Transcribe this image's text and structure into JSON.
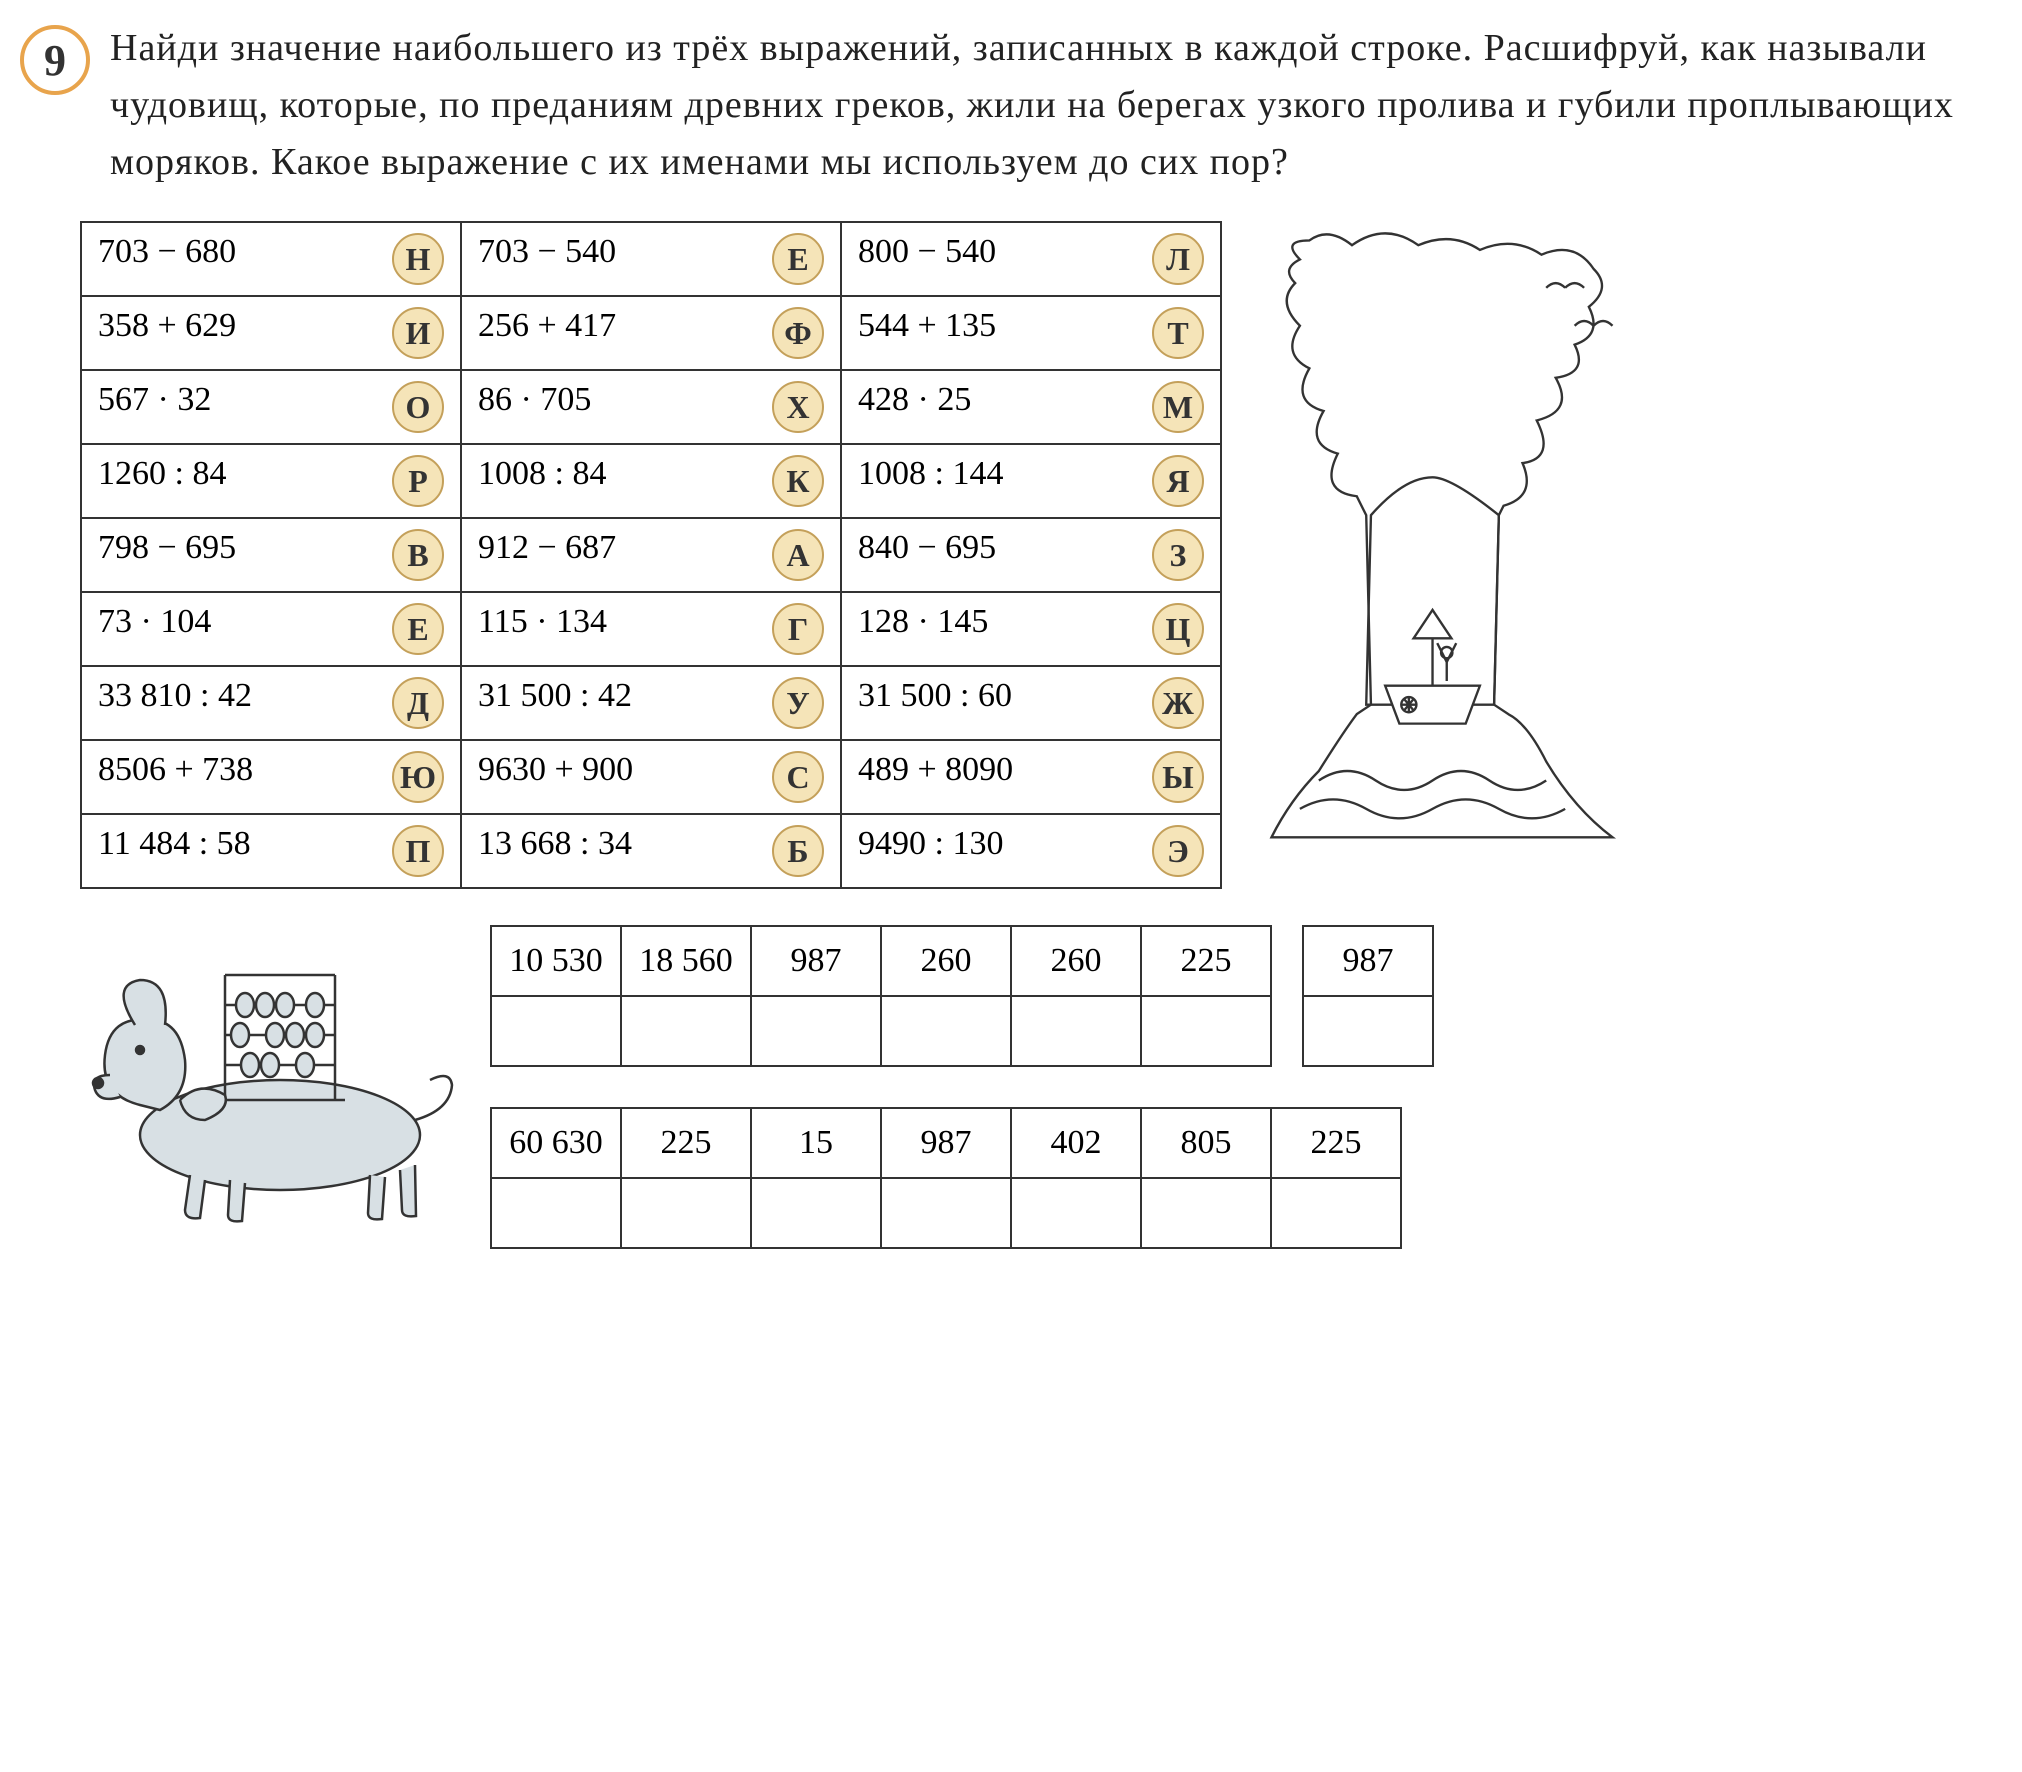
{
  "taskNumber": "9",
  "taskText": "Найди значение наибольшего из трёх выражений, записанных в каждой строке. Расшифруй, как называли чудовищ, которые, по преданиям древних греков, жили на берегах узкого пролива и губили проплывающих моряков. Какое выражение с их именами мы используем до сих пор?",
  "expressionRows": [
    [
      {
        "expr": "703 − 680",
        "letter": "Н"
      },
      {
        "expr": "703 − 540",
        "letter": "Е"
      },
      {
        "expr": "800 − 540",
        "letter": "Л"
      }
    ],
    [
      {
        "expr": "358 + 629",
        "letter": "И"
      },
      {
        "expr": "256 + 417",
        "letter": "Ф"
      },
      {
        "expr": "544 + 135",
        "letter": "Т"
      }
    ],
    [
      {
        "expr": "567 · 32",
        "letter": "О"
      },
      {
        "expr": "86 · 705",
        "letter": "Х"
      },
      {
        "expr": "428 · 25",
        "letter": "М"
      }
    ],
    [
      {
        "expr": "1260 : 84",
        "letter": "Р"
      },
      {
        "expr": "1008 : 84",
        "letter": "К"
      },
      {
        "expr": "1008 : 144",
        "letter": "Я"
      }
    ],
    [
      {
        "expr": "798 − 695",
        "letter": "В"
      },
      {
        "expr": "912 − 687",
        "letter": "А"
      },
      {
        "expr": "840 − 695",
        "letter": "З"
      }
    ],
    [
      {
        "expr": "73 · 104",
        "letter": "Е"
      },
      {
        "expr": "115 · 134",
        "letter": "Г"
      },
      {
        "expr": "128 · 145",
        "letter": "Ц"
      }
    ],
    [
      {
        "expr": "33 810 : 42",
        "letter": "Д"
      },
      {
        "expr": "31 500 : 42",
        "letter": "У"
      },
      {
        "expr": "31 500 : 60",
        "letter": "Ж"
      }
    ],
    [
      {
        "expr": "8506 + 738",
        "letter": "Ю"
      },
      {
        "expr": "9630 + 900",
        "letter": "С"
      },
      {
        "expr": "489 + 8090",
        "letter": "Ы"
      }
    ],
    [
      {
        "expr": "11 484 : 58",
        "letter": "П"
      },
      {
        "expr": "13 668 : 34",
        "letter": "Б"
      },
      {
        "expr": "9490 : 130",
        "letter": "Э"
      }
    ]
  ],
  "answerRow1a": [
    "10 530",
    "18 560",
    "987",
    "260",
    "260",
    "225"
  ],
  "answerRow1b": [
    "987"
  ],
  "answerRow2": [
    "60 630",
    "225",
    "15",
    "987",
    "402",
    "805",
    "225"
  ],
  "colors": {
    "badgeBg": "#f5e4b8",
    "badgeBorder": "#c4a05a",
    "numberRing": "#e8a44c",
    "tableBorder": "#333333",
    "text": "#222222",
    "illustrationFill": "#d8e0e4",
    "illustrationStroke": "#333333"
  },
  "typography": {
    "taskTextSize": 38,
    "exprSize": 34,
    "badgeLetterSize": 32,
    "taskNumberSize": 44,
    "fontFamily": "Georgia, serif"
  }
}
